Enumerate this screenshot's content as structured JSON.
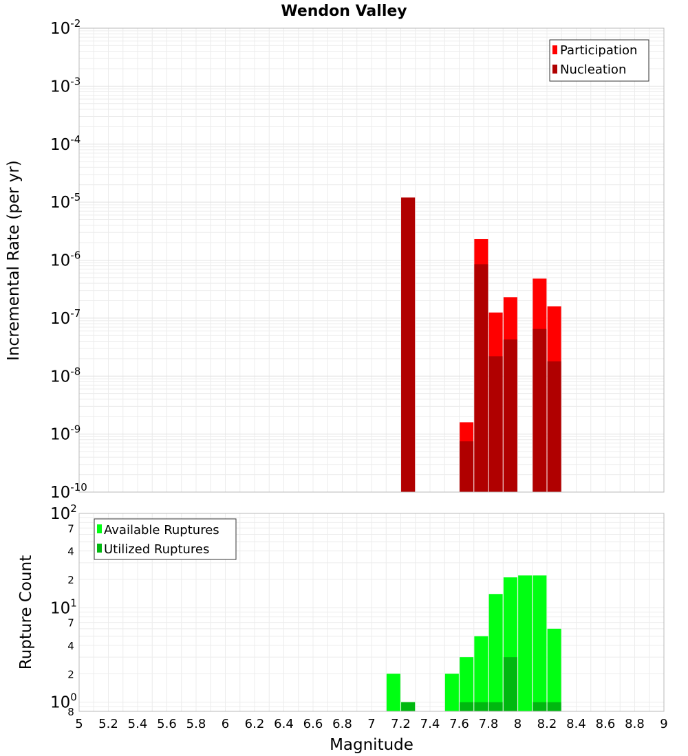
{
  "chart_data": [
    {
      "type": "bar",
      "title": "Wendon Valley",
      "xlabel": "",
      "ylabel": "Incremental Rate (per yr)",
      "yscale": "log",
      "xlim": [
        5,
        9
      ],
      "ylim": [
        1e-10,
        0.01
      ],
      "y_ticks": [
        {
          "base": "10",
          "exp": "-10",
          "value": 1e-10
        },
        {
          "base": "10",
          "exp": "-9",
          "value": 1e-09
        },
        {
          "base": "10",
          "exp": "-8",
          "value": 1e-08
        },
        {
          "base": "10",
          "exp": "-7",
          "value": 1e-07
        },
        {
          "base": "10",
          "exp": "-6",
          "value": 1e-06
        },
        {
          "base": "10",
          "exp": "-5",
          "value": 1e-05
        },
        {
          "base": "10",
          "exp": "-4",
          "value": 0.0001
        },
        {
          "base": "10",
          "exp": "-3",
          "value": 0.001
        },
        {
          "base": "10",
          "exp": "-2",
          "value": 0.01
        }
      ],
      "legend_position": "top-right",
      "grid": true,
      "series": [
        {
          "name": "Participation",
          "color": "#ff0000",
          "points": [
            {
              "x": 7.25,
              "y": 1.2e-05
            },
            {
              "x": 7.65,
              "y": 1.6e-09
            },
            {
              "x": 7.75,
              "y": 2.3e-06
            },
            {
              "x": 7.85,
              "y": 1.25e-07
            },
            {
              "x": 7.95,
              "y": 2.3e-07
            },
            {
              "x": 8.15,
              "y": 4.8e-07
            },
            {
              "x": 8.25,
              "y": 1.6e-07
            }
          ]
        },
        {
          "name": "Nucleation",
          "color": "#b00000",
          "points": [
            {
              "x": 7.25,
              "y": 1.2e-05
            },
            {
              "x": 7.65,
              "y": 7.5e-10
            },
            {
              "x": 7.75,
              "y": 8.5e-07
            },
            {
              "x": 7.85,
              "y": 2.2e-08
            },
            {
              "x": 7.95,
              "y": 4.3e-08
            },
            {
              "x": 8.15,
              "y": 6.5e-08
            },
            {
              "x": 8.25,
              "y": 1.8e-08
            }
          ]
        }
      ]
    },
    {
      "type": "bar",
      "title": "",
      "xlabel": "Magnitude",
      "ylabel": "Rupture Count",
      "yscale": "log",
      "xlim": [
        5,
        9
      ],
      "ylim": [
        0.8,
        100
      ],
      "x_tick_labels": [
        "5",
        "5.2",
        "5.4",
        "5.6",
        "5.8",
        "6",
        "6.2",
        "6.4",
        "6.6",
        "6.8",
        "7",
        "7.2",
        "7.4",
        "7.6",
        "7.8",
        "8",
        "8.2",
        "8.4",
        "8.6",
        "8.8",
        "9"
      ],
      "y_major_ticks": [
        {
          "base": "10",
          "exp": "0",
          "value": 1
        },
        {
          "base": "10",
          "exp": "1",
          "value": 10
        },
        {
          "base": "10",
          "exp": "2",
          "value": 100
        }
      ],
      "y_minor_ticks": [
        {
          "label": "8",
          "value": 0.8
        },
        {
          "label": "2",
          "value": 2
        },
        {
          "label": "4",
          "value": 4
        },
        {
          "label": "7",
          "value": 7
        },
        {
          "label": "2",
          "value": 20
        },
        {
          "label": "4",
          "value": 40
        },
        {
          "label": "7",
          "value": 70
        }
      ],
      "legend_position": "top-left",
      "grid": true,
      "series": [
        {
          "name": "Available Ruptures",
          "color": "#00ff12",
          "points": [
            {
              "x": 7.15,
              "y": 2
            },
            {
              "x": 7.25,
              "y": 1
            },
            {
              "x": 7.55,
              "y": 2
            },
            {
              "x": 7.65,
              "y": 3
            },
            {
              "x": 7.75,
              "y": 5
            },
            {
              "x": 7.85,
              "y": 14
            },
            {
              "x": 7.95,
              "y": 21
            },
            {
              "x": 8.05,
              "y": 22
            },
            {
              "x": 8.15,
              "y": 22
            },
            {
              "x": 8.25,
              "y": 6
            }
          ]
        },
        {
          "name": "Utilized Ruptures",
          "color": "#00b810",
          "points": [
            {
              "x": 7.25,
              "y": 1
            },
            {
              "x": 7.65,
              "y": 1
            },
            {
              "x": 7.75,
              "y": 1
            },
            {
              "x": 7.85,
              "y": 1
            },
            {
              "x": 7.95,
              "y": 3
            },
            {
              "x": 8.15,
              "y": 1
            },
            {
              "x": 8.25,
              "y": 1
            }
          ]
        }
      ]
    }
  ]
}
